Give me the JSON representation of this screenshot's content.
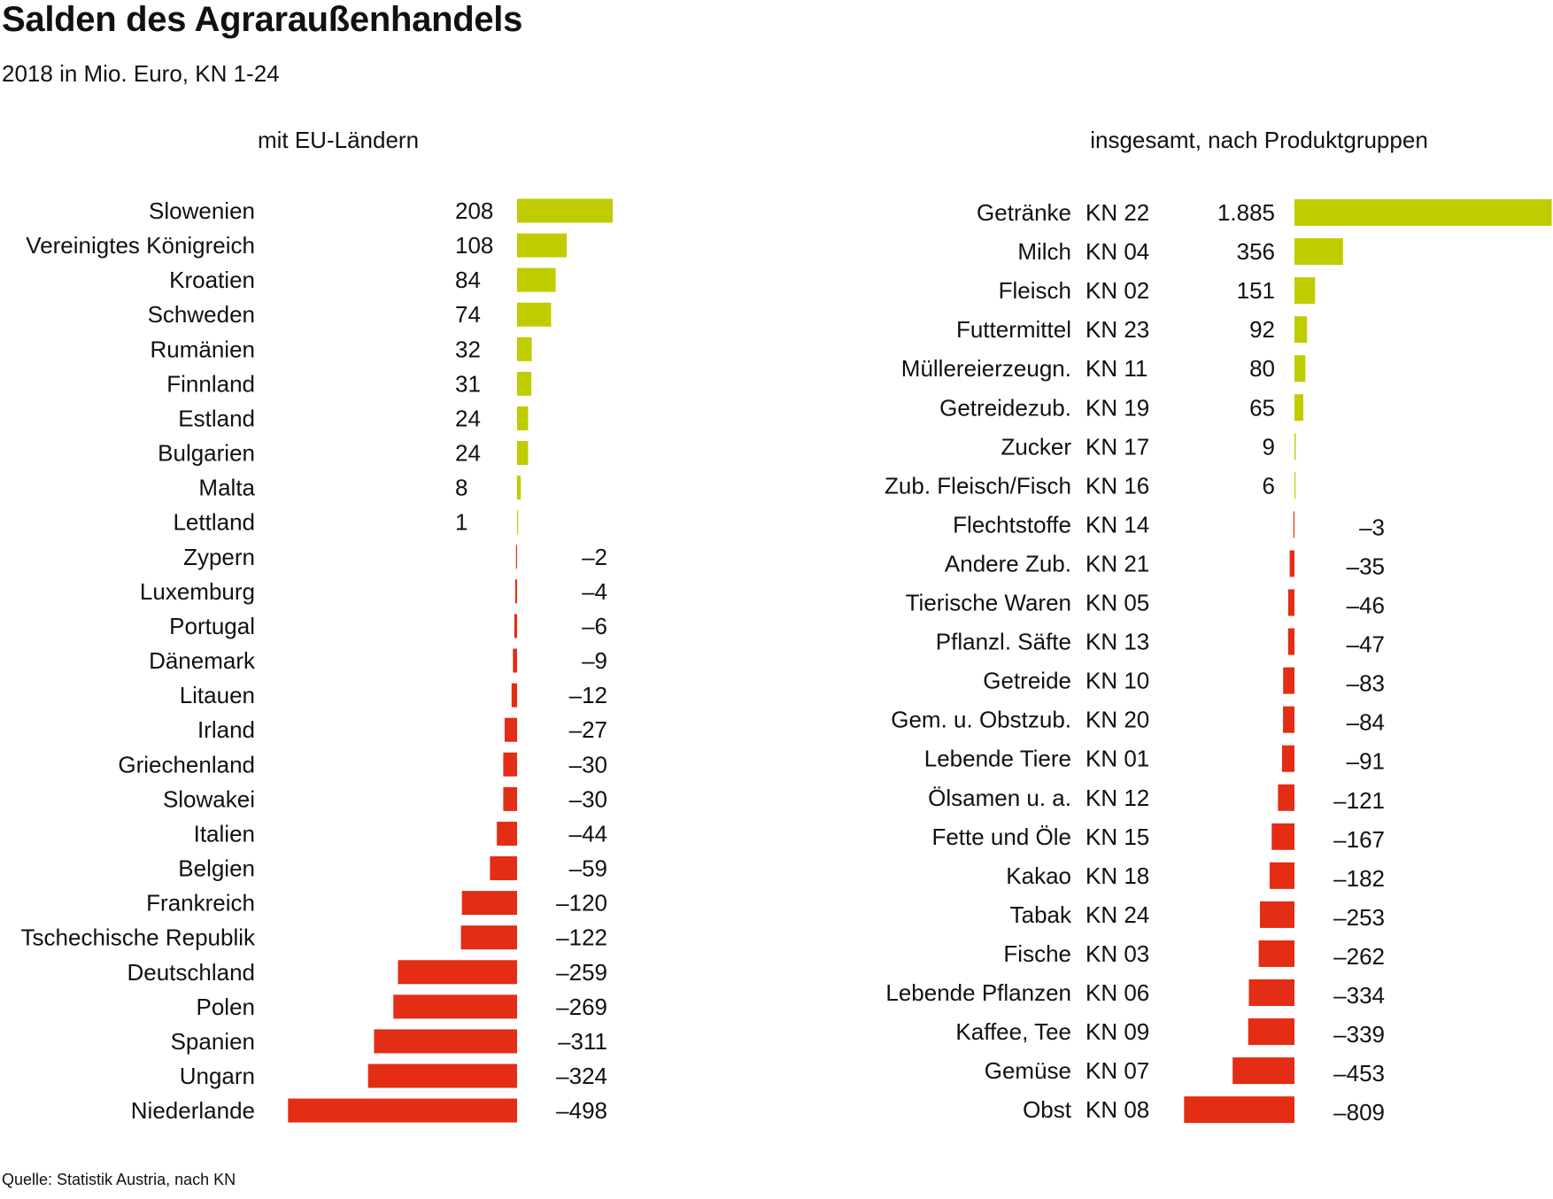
{
  "title": "Salden des Agraraußenhandels",
  "subtitle": "2018 in Mio. Euro, KN 1-24",
  "source": "Quelle: Statistik Austria, nach KN",
  "colors": {
    "positive": "#bfcd00",
    "negative": "#e32d14"
  },
  "chart_data": [
    {
      "type": "bar",
      "orientation": "horizontal",
      "title": "mit EU-Ländern",
      "unit": "Mio. Euro",
      "categories": [
        "Slowenien",
        "Vereinigtes Königreich",
        "Kroatien",
        "Schweden",
        "Rumänien",
        "Finnland",
        "Estland",
        "Bulgarien",
        "Malta",
        "Lettland",
        "Zypern",
        "Luxemburg",
        "Portugal",
        "Dänemark",
        "Litauen",
        "Irland",
        "Griechenland",
        "Slowakei",
        "Italien",
        "Belgien",
        "Frankreich",
        "Tschechische Republik",
        "Deutschland",
        "Polen",
        "Spanien",
        "Ungarn",
        "Niederlande"
      ],
      "values": [
        208,
        108,
        84,
        74,
        32,
        31,
        24,
        24,
        8,
        1,
        -2,
        -4,
        -6,
        -9,
        -12,
        -27,
        -30,
        -30,
        -44,
        -59,
        -120,
        -122,
        -259,
        -269,
        -311,
        -324,
        -498
      ],
      "value_labels": [
        "208",
        "108",
        "84",
        "74",
        "32",
        "31",
        "24",
        "24",
        "8",
        "1",
        "–2",
        "–4",
        "–6",
        "–9",
        "–12",
        "–27",
        "–30",
        "–30",
        "–44",
        "–59",
        "–120",
        "–122",
        "–259",
        "–269",
        "–311",
        "–324",
        "–498"
      ],
      "xlim": [
        -498,
        208
      ],
      "grid": false,
      "legend": "none"
    },
    {
      "type": "bar",
      "orientation": "horizontal",
      "title": "insgesamt, nach Produktgruppen",
      "unit": "Mio. Euro",
      "categories": [
        "Getränke",
        "Milch",
        "Fleisch",
        "Futtermittel",
        "Müllereierzeugn.",
        "Getreidezub.",
        "Zucker",
        "Zub. Fleisch/Fisch",
        "Flechtstoffe",
        "Andere Zub.",
        "Tierische Waren",
        "Pflanzl. Säfte",
        "Getreide",
        "Gem. u. Obstzub.",
        "Lebende Tiere",
        "Ölsamen u. a.",
        "Fette und Öle",
        "Kakao",
        "Tabak",
        "Fische",
        "Lebende Pflanzen",
        "Kaffee, Tee",
        "Gemüse",
        "Obst"
      ],
      "codes": [
        "KN 22",
        "KN 04",
        "KN 02",
        "KN 23",
        "KN 11",
        "KN 19",
        "KN 17",
        "KN 16",
        "KN 14",
        "KN 21",
        "KN 05",
        "KN 13",
        "KN 10",
        "KN 20",
        "KN 01",
        "KN 12",
        "KN 15",
        "KN 18",
        "KN 24",
        "KN 03",
        "KN 06",
        "KN 09",
        "KN 07",
        "KN 08"
      ],
      "values": [
        1885,
        356,
        151,
        92,
        80,
        65,
        9,
        6,
        -3,
        -35,
        -46,
        -47,
        -83,
        -84,
        -91,
        -121,
        -167,
        -182,
        -253,
        -262,
        -334,
        -339,
        -453,
        -809
      ],
      "value_labels": [
        "1.885",
        "356",
        "151",
        "92",
        "80",
        "65",
        "9",
        "6",
        "–3",
        "–35",
        "–46",
        "–47",
        "–83",
        "–84",
        "–91",
        "–121",
        "–167",
        "–182",
        "–253",
        "–262",
        "–334",
        "–339",
        "–453",
        "–809"
      ],
      "xlim": [
        -809,
        1885
      ],
      "grid": false,
      "legend": "none"
    }
  ]
}
